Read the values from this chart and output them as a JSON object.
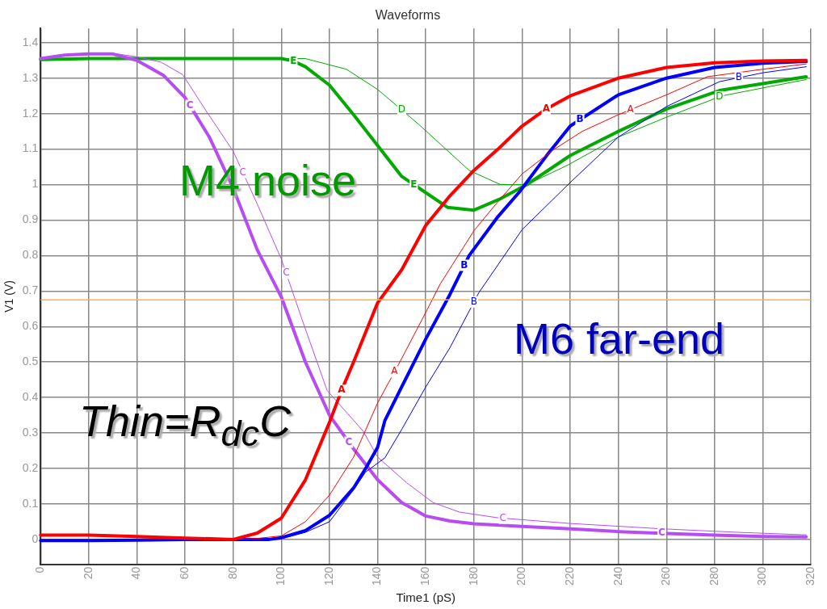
{
  "chart_data": {
    "type": "line",
    "title": "Waveforms",
    "xlabel": "Time1 (pS)",
    "ylabel": "V1 (V)",
    "xlim": [
      0,
      320
    ],
    "xticks": [
      0,
      20,
      40,
      60,
      80,
      100,
      120,
      140,
      160,
      180,
      200,
      220,
      240,
      260,
      280,
      300,
      320
    ],
    "ylim": [
      -0.07,
      1.44
    ],
    "yticks": [
      0,
      0.1,
      0.2,
      0.3,
      0.4,
      0.5,
      0.6,
      0.7,
      0.8,
      0.9,
      1,
      1.1,
      1.2,
      1.3,
      1.4
    ],
    "grid": true,
    "legend": false,
    "marker": "none",
    "ref_lines": [
      {
        "axis": "y",
        "value": 0.675,
        "color": "#ffb040"
      }
    ],
    "annotations": [
      "M4 noise",
      "M6 far-end",
      "Thin=R$_{dc}$C"
    ],
    "series": [
      {
        "name": "A",
        "color": "#ff0000",
        "x": [
          0,
          20,
          40,
          60,
          80,
          90,
          100,
          110,
          120,
          125,
          130,
          140,
          150,
          160,
          170,
          180,
          190,
          200,
          210,
          220,
          240,
          260,
          280,
          300,
          318
        ],
        "values": [
          0.012,
          0.012,
          0.008,
          0.004,
          0,
          0.018,
          0.06,
          0.168,
          0.33,
          0.42,
          0.5,
          0.667,
          0.76,
          0.885,
          0.968,
          1.04,
          1.1,
          1.165,
          1.213,
          1.25,
          1.3,
          1.33,
          1.343,
          1.348,
          1.35
        ]
      },
      {
        "name": "A",
        "color": "#ff0000",
        "x": [
          0,
          20,
          40,
          60,
          80,
          90,
          100,
          110,
          120,
          130,
          140,
          150,
          160,
          166,
          180,
          189,
          200,
          213,
          225,
          240,
          260,
          277,
          300,
          318
        ],
        "values": [
          0.012,
          0.012,
          0.008,
          0.004,
          0,
          0.003,
          0.01,
          0.05,
          0.125,
          0.232,
          0.385,
          0.51,
          0.64,
          0.72,
          0.87,
          0.944,
          1.03,
          1.098,
          1.15,
          1.197,
          1.253,
          1.304,
          1.325,
          1.34
        ]
      },
      {
        "name": "B",
        "color": "#0000ff",
        "x": [
          0,
          20,
          40,
          60,
          80,
          95,
          100,
          110,
          120,
          130,
          135,
          140,
          143,
          150,
          160,
          170,
          178,
          190,
          199,
          210,
          220,
          240,
          260,
          280,
          300,
          318
        ],
        "values": [
          -0.003,
          -0.003,
          -0.002,
          0,
          0,
          0,
          0.005,
          0.025,
          0.068,
          0.145,
          0.2,
          0.26,
          0.335,
          0.43,
          0.565,
          0.69,
          0.8,
          0.91,
          0.98,
          1.08,
          1.165,
          1.253,
          1.3,
          1.33,
          1.342,
          1.347
        ]
      },
      {
        "name": "B",
        "color": "#0000ff",
        "x": [
          0,
          20,
          40,
          60,
          80,
          100,
          110,
          120,
          130,
          135,
          143,
          150,
          160,
          170,
          182,
          200,
          220,
          240,
          260,
          282,
          300,
          318
        ],
        "values": [
          -0.003,
          -0.003,
          -0.002,
          0,
          0,
          0.002,
          0.02,
          0.05,
          0.14,
          0.19,
          0.23,
          0.31,
          0.43,
          0.54,
          0.695,
          0.873,
          1.006,
          1.134,
          1.22,
          1.29,
          1.315,
          1.332
        ]
      },
      {
        "name": "C",
        "color": "#b84cf4",
        "x": [
          0,
          10,
          20,
          30,
          40,
          51,
          60,
          70,
          80,
          90,
          100,
          110,
          120,
          130,
          140,
          150,
          160,
          170,
          180,
          200,
          220,
          240,
          260,
          280,
          300,
          318
        ],
        "values": [
          1.355,
          1.365,
          1.368,
          1.368,
          1.35,
          1.308,
          1.245,
          1.135,
          0.99,
          0.816,
          0.683,
          0.5,
          0.35,
          0.255,
          0.168,
          0.104,
          0.066,
          0.052,
          0.044,
          0.037,
          0.03,
          0.022,
          0.017,
          0.012,
          0.008,
          0.007
        ]
      },
      {
        "name": "C",
        "color": "#b84cf4",
        "x": [
          0,
          10,
          30,
          40,
          50,
          59,
          69,
          80,
          90,
          100,
          109,
          119,
          134,
          140,
          152,
          163,
          174,
          190,
          220,
          258,
          290,
          318
        ],
        "values": [
          1.355,
          1.365,
          1.37,
          1.36,
          1.345,
          1.31,
          1.205,
          1.094,
          0.945,
          0.79,
          0.612,
          0.42,
          0.305,
          0.232,
          0.16,
          0.104,
          0.077,
          0.061,
          0.045,
          0.03,
          0.02,
          0.013
        ]
      },
      {
        "name": "E",
        "color": "#00aa00",
        "x": [
          0,
          20,
          40,
          60,
          80,
          100,
          105,
          110,
          120,
          130,
          140,
          150,
          155,
          169,
          180,
          191,
          202,
          220,
          240,
          260,
          282,
          318
        ],
        "values": [
          1.352,
          1.355,
          1.355,
          1.355,
          1.355,
          1.355,
          1.348,
          1.332,
          1.28,
          1.197,
          1.11,
          1.023,
          1.0,
          0.936,
          0.928,
          0.96,
          1.0,
          1.082,
          1.15,
          1.213,
          1.265,
          1.304
        ]
      },
      {
        "name": "D",
        "color": "#00aa00",
        "x": [
          0,
          20,
          40,
          60,
          80,
          100,
          110,
          127,
          140,
          157,
          178,
          191,
          202,
          219,
          240,
          260,
          283,
          318
        ],
        "values": [
          1.352,
          1.355,
          1.355,
          1.355,
          1.355,
          1.355,
          1.355,
          1.325,
          1.268,
          1.17,
          1.04,
          1.0,
          1.0,
          1.055,
          1.134,
          1.19,
          1.25,
          1.296
        ]
      }
    ]
  }
}
